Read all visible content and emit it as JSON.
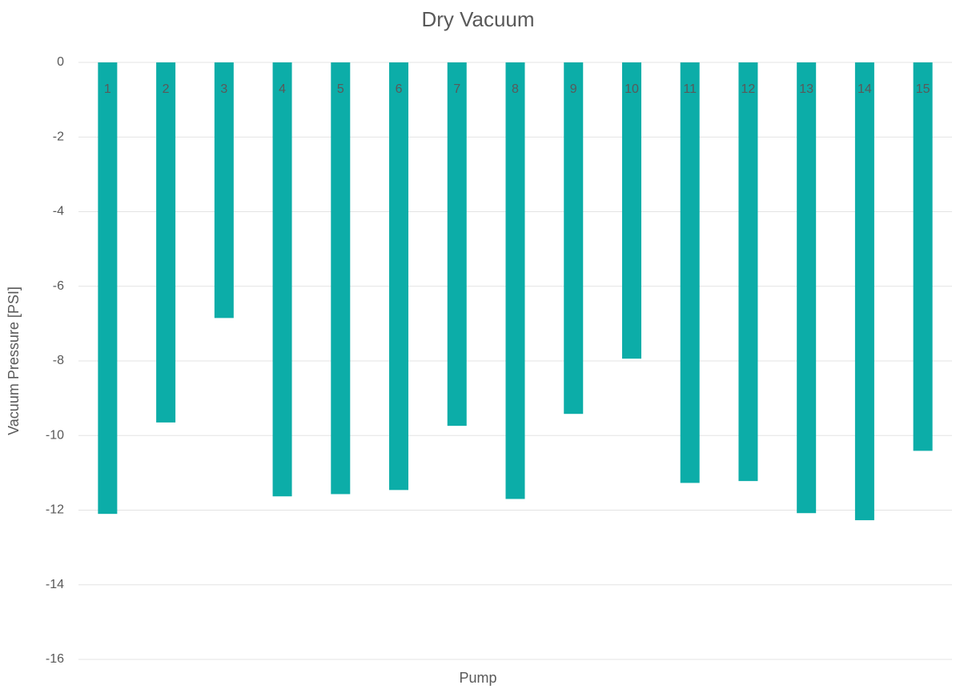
{
  "chart_data": {
    "type": "bar",
    "title": "Dry Vacuum",
    "x_label": "Pump",
    "y_label": "Vacuum Pressure [PSI]",
    "categories": [
      "1",
      "2",
      "3",
      "4",
      "5",
      "6",
      "7",
      "8",
      "9",
      "10",
      "11",
      "12",
      "13",
      "14",
      "15"
    ],
    "values": [
      -12.1,
      -9.65,
      -6.85,
      -11.63,
      -11.57,
      -11.46,
      -9.74,
      -11.7,
      -9.42,
      -7.94,
      -11.27,
      -11.22,
      -12.08,
      -12.27,
      -10.41
    ],
    "color": "#0cada8",
    "ylim": [
      -16,
      0
    ],
    "yticks": [
      0,
      -2,
      -4,
      -6,
      -8,
      -10,
      -12,
      -14,
      -16
    ],
    "grid": true
  }
}
